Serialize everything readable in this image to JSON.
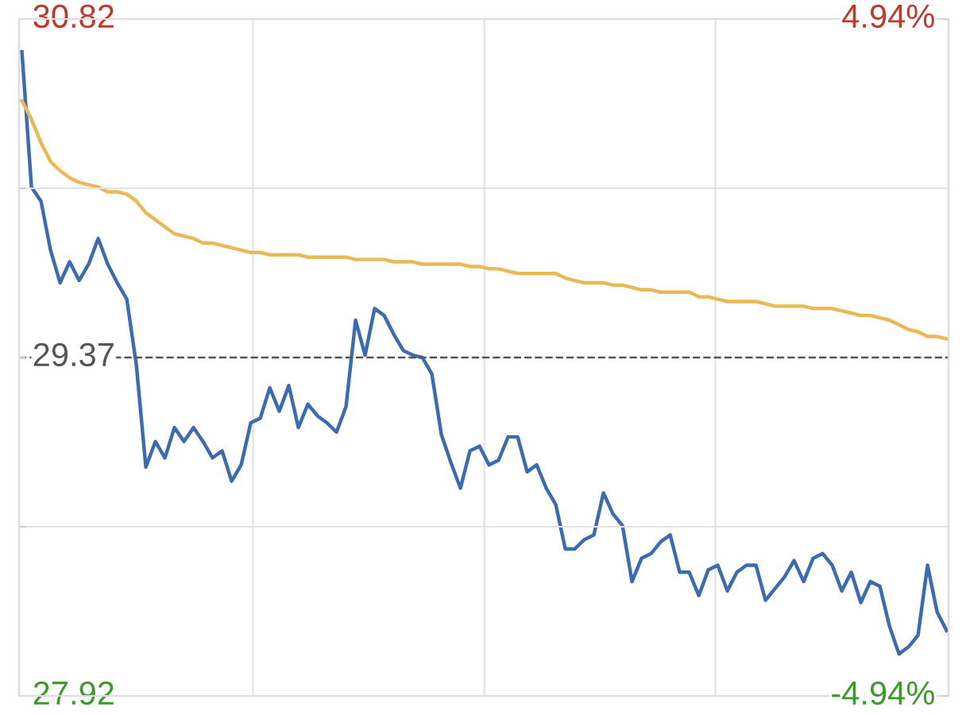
{
  "chart_data": {
    "type": "line",
    "categories": [
      null,
      null,
      null,
      null,
      null,
      null,
      null,
      null,
      null,
      null,
      null,
      null,
      null,
      null,
      null,
      null,
      null,
      null,
      null,
      null,
      null,
      null,
      null,
      null,
      null,
      null,
      null,
      null,
      null,
      null,
      null,
      null,
      null,
      null,
      null,
      null,
      null,
      null,
      null,
      null,
      null,
      null,
      null,
      null,
      null,
      null,
      null,
      null,
      null,
      null,
      null,
      null,
      null,
      null,
      null,
      null,
      null,
      null,
      null,
      null,
      null,
      null,
      null,
      null,
      null,
      null,
      null,
      null,
      null,
      null,
      null,
      null,
      null,
      null,
      null,
      null,
      null,
      null,
      null,
      null,
      null,
      null,
      null,
      null,
      null,
      null,
      null,
      null,
      null,
      null,
      null,
      null,
      null,
      null,
      null,
      null,
      null,
      null
    ],
    "series": [
      {
        "color": "#3b6bb3",
        "values": [
          30.68,
          30.1,
          30.04,
          29.83,
          29.69,
          29.78,
          29.7,
          29.77,
          29.88,
          29.77,
          29.69,
          29.62,
          29.34,
          28.9,
          29.01,
          28.94,
          29.07,
          29.01,
          29.07,
          29.01,
          28.94,
          28.97,
          28.84,
          28.91,
          29.09,
          29.11,
          29.24,
          29.14,
          29.25,
          29.07,
          29.17,
          29.12,
          29.09,
          29.05,
          29.16,
          29.53,
          29.38,
          29.58,
          29.55,
          29.47,
          29.4,
          29.38,
          29.37,
          29.3,
          29.04,
          28.92,
          28.81,
          28.97,
          28.99,
          28.91,
          28.93,
          29.03,
          29.03,
          28.88,
          28.91,
          28.81,
          28.74,
          28.55,
          28.55,
          28.59,
          28.61,
          28.79,
          28.7,
          28.65,
          28.41,
          28.51,
          28.53,
          28.58,
          28.61,
          28.45,
          28.45,
          28.35,
          28.46,
          28.48,
          28.37,
          28.45,
          28.48,
          28.48,
          28.33,
          28.38,
          28.43,
          28.5,
          28.41,
          28.51,
          28.53,
          28.48,
          28.37,
          28.45,
          28.32,
          28.41,
          28.39,
          28.22,
          28.1,
          28.13,
          28.18,
          28.48,
          28.28,
          28.2
        ]
      },
      {
        "color": "#e9b955",
        "values": [
          30.47,
          30.39,
          30.29,
          30.21,
          30.17,
          30.14,
          30.12,
          30.11,
          30.1,
          30.08,
          30.08,
          30.07,
          30.04,
          29.99,
          29.96,
          29.93,
          29.9,
          29.89,
          29.88,
          29.86,
          29.86,
          29.85,
          29.84,
          29.83,
          29.82,
          29.82,
          29.81,
          29.81,
          29.81,
          29.81,
          29.8,
          29.8,
          29.8,
          29.8,
          29.8,
          29.79,
          29.79,
          29.79,
          29.79,
          29.78,
          29.78,
          29.78,
          29.77,
          29.77,
          29.77,
          29.77,
          29.77,
          29.76,
          29.76,
          29.75,
          29.75,
          29.74,
          29.73,
          29.73,
          29.73,
          29.73,
          29.73,
          29.71,
          29.7,
          29.69,
          29.69,
          29.69,
          29.68,
          29.68,
          29.67,
          29.66,
          29.66,
          29.65,
          29.65,
          29.65,
          29.65,
          29.63,
          29.63,
          29.62,
          29.61,
          29.61,
          29.61,
          29.61,
          29.6,
          29.59,
          29.59,
          29.59,
          29.59,
          29.58,
          29.58,
          29.58,
          29.57,
          29.56,
          29.55,
          29.55,
          29.54,
          29.53,
          29.51,
          29.49,
          29.48,
          29.46,
          29.46,
          29.45
        ]
      }
    ],
    "ylim": [
      27.92,
      30.82
    ],
    "yticks": [
      27.92,
      {
        "value": 28.645,
        "label": null
      },
      29.37,
      {
        "value": 30.095,
        "label": null
      },
      30.82
    ],
    "y2lim": [
      -4.94,
      4.94
    ],
    "y2ticks": [
      {
        "value": -4.94,
        "label": "-4.94%"
      },
      {
        "value": 4.94,
        "label": "4.94%"
      }
    ],
    "ref_lines": [
      {
        "axis": "y",
        "value": 29.37,
        "color": "#555555",
        "line_style": "dashed"
      }
    ],
    "grid": true,
    "tick_labels": "y",
    "line_style": "solid",
    "marker": "none"
  }
}
